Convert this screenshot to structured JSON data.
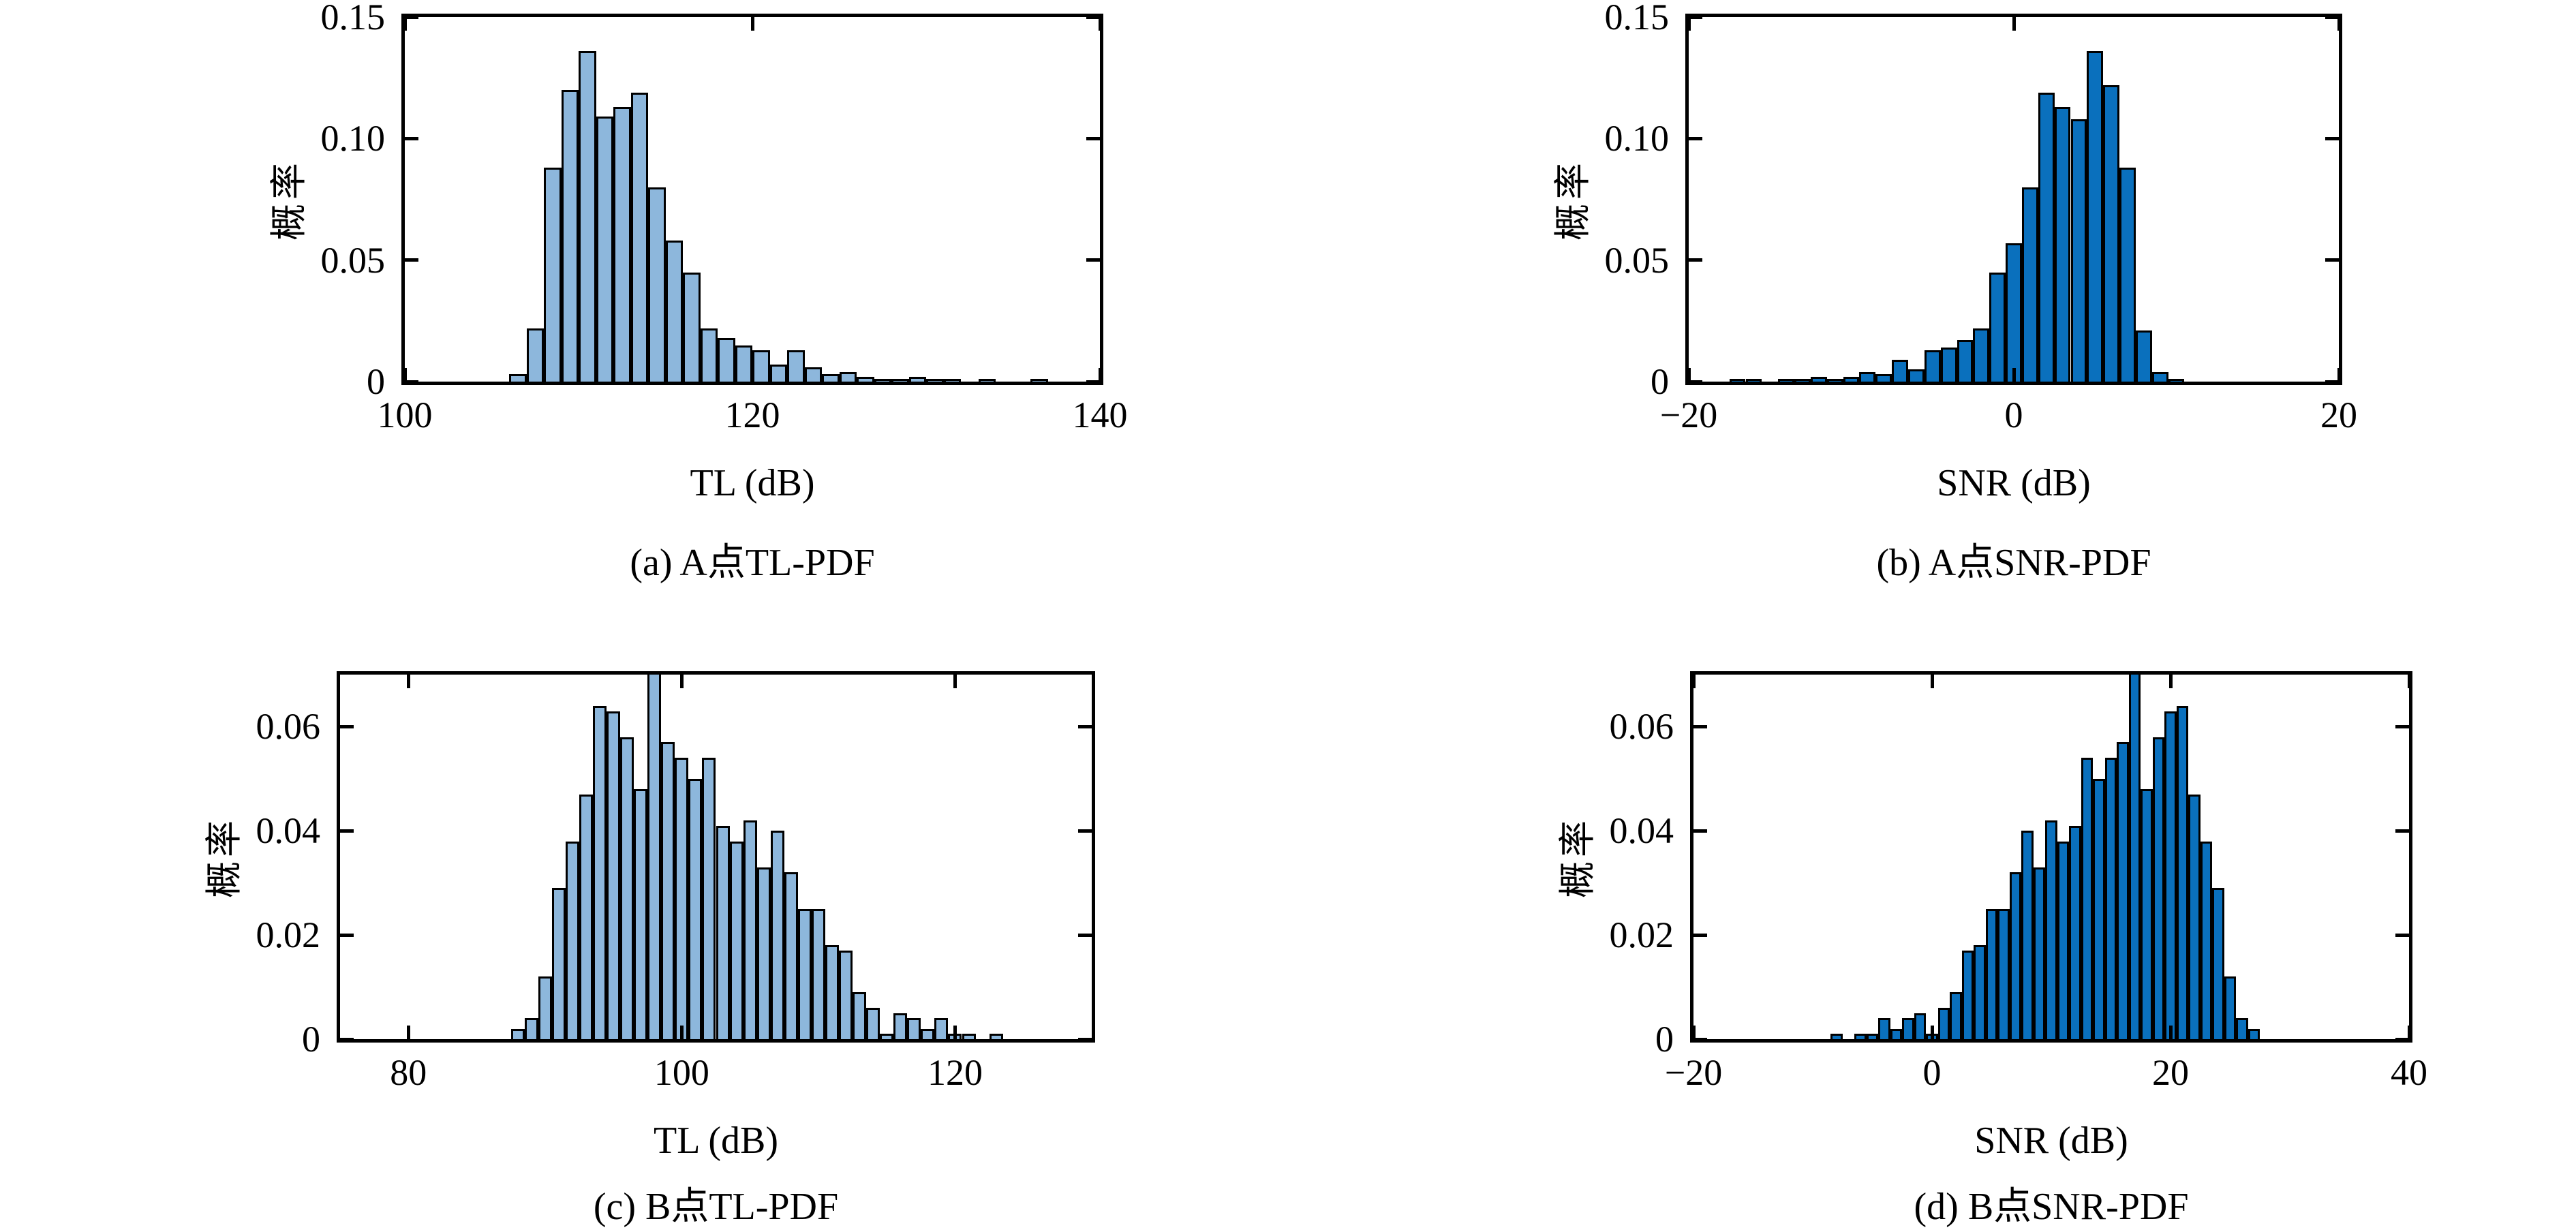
{
  "figure": {
    "background": "#ffffff",
    "edge_color": "#000000",
    "probability_label": "概率"
  },
  "chart_data": [
    {
      "id": "a",
      "type": "bar",
      "caption": "(a) A点TL-PDF",
      "xlabel": "TL (dB)",
      "ylabel": "概率",
      "bar_color": "#8db7dc",
      "edge_color": "#000000",
      "grid": false,
      "legend": null,
      "xlim": [
        100,
        140
      ],
      "ylim": [
        0,
        0.15
      ],
      "xticks": [
        {
          "v": 100,
          "label": "100"
        },
        {
          "v": 120,
          "label": "120"
        },
        {
          "v": 140,
          "label": "140"
        }
      ],
      "yticks": [
        {
          "v": 0,
          "label": "0"
        },
        {
          "v": 0.05,
          "label": "0.05"
        },
        {
          "v": 0.1,
          "label": "0.10"
        },
        {
          "v": 0.15,
          "label": "0.15"
        }
      ],
      "bin_start": 106,
      "bin_width": 1,
      "values": [
        0.003,
        0.022,
        0.088,
        0.12,
        0.136,
        0.109,
        0.113,
        0.119,
        0.08,
        0.058,
        0.045,
        0.022,
        0.018,
        0.015,
        0.013,
        0.007,
        0.013,
        0.006,
        0.003,
        0.004,
        0.002,
        0.001,
        0.001,
        0.002,
        0.001,
        0.001,
        0,
        0.001,
        0,
        0,
        0.001
      ]
    },
    {
      "id": "b",
      "type": "bar",
      "caption": "(b) A点SNR-PDF",
      "xlabel": "SNR (dB)",
      "ylabel": "概率",
      "bar_color": "#0a70bd",
      "edge_color": "#000000",
      "grid": false,
      "legend": null,
      "xlim": [
        -20,
        20
      ],
      "ylim": [
        0,
        0.15
      ],
      "xticks": [
        {
          "v": -20,
          "label": "−20"
        },
        {
          "v": 0,
          "label": "0"
        },
        {
          "v": 20,
          "label": "20"
        }
      ],
      "yticks": [
        {
          "v": 0,
          "label": "0"
        },
        {
          "v": 0.05,
          "label": "0.05"
        },
        {
          "v": 0.1,
          "label": "0.10"
        },
        {
          "v": 0.15,
          "label": "0.15"
        }
      ],
      "bin_start": -17.5,
      "bin_width": 1,
      "values": [
        0.001,
        0.001,
        0,
        0.001,
        0.001,
        0.002,
        0.001,
        0.002,
        0.004,
        0.003,
        0.009,
        0.005,
        0.013,
        0.014,
        0.017,
        0.022,
        0.045,
        0.057,
        0.08,
        0.119,
        0.113,
        0.108,
        0.136,
        0.122,
        0.088,
        0.021,
        0.004,
        0.001
      ]
    },
    {
      "id": "c",
      "type": "bar",
      "caption": "(c) B点TL-PDF",
      "xlabel": "TL (dB)",
      "ylabel": "概率",
      "bar_color": "#8db7dc",
      "edge_color": "#000000",
      "grid": false,
      "legend": null,
      "xlim": [
        75,
        130
      ],
      "ylim": [
        0,
        0.07
      ],
      "xticks": [
        {
          "v": 80,
          "label": "80"
        },
        {
          "v": 100,
          "label": "100"
        },
        {
          "v": 120,
          "label": "120"
        }
      ],
      "yticks": [
        {
          "v": 0,
          "label": "0"
        },
        {
          "v": 0.02,
          "label": "0.02"
        },
        {
          "v": 0.04,
          "label": "0.04"
        },
        {
          "v": 0.06,
          "label": "0.06"
        }
      ],
      "bin_start": 87.5,
      "bin_width": 1,
      "values": [
        0.002,
        0.004,
        0.012,
        0.029,
        0.038,
        0.047,
        0.064,
        0.063,
        0.058,
        0.048,
        0.073,
        0.057,
        0.054,
        0.05,
        0.054,
        0.041,
        0.038,
        0.042,
        0.033,
        0.04,
        0.032,
        0.025,
        0.025,
        0.018,
        0.017,
        0.009,
        0.006,
        0.001,
        0.005,
        0.004,
        0.002,
        0.004,
        0.001,
        0.001,
        0,
        0.001
      ]
    },
    {
      "id": "d",
      "type": "bar",
      "caption": "(d) B点SNR-PDF",
      "xlabel": "SNR (dB)",
      "ylabel": "概率",
      "bar_color": "#0a70bd",
      "edge_color": "#000000",
      "grid": false,
      "legend": null,
      "xlim": [
        -20,
        40
      ],
      "ylim": [
        0,
        0.07
      ],
      "xticks": [
        {
          "v": -20,
          "label": "−20"
        },
        {
          "v": 0,
          "label": "0"
        },
        {
          "v": 20,
          "label": "20"
        },
        {
          "v": 40,
          "label": "40"
        }
      ],
      "yticks": [
        {
          "v": 0,
          "label": "0"
        },
        {
          "v": 0.02,
          "label": "0.02"
        },
        {
          "v": 0.04,
          "label": "0.04"
        },
        {
          "v": 0.06,
          "label": "0.06"
        }
      ],
      "bin_start": -8.5,
      "bin_width": 1,
      "values": [
        0.001,
        0,
        0.001,
        0.001,
        0.004,
        0.002,
        0.004,
        0.005,
        0.001,
        0.006,
        0.009,
        0.017,
        0.018,
        0.025,
        0.025,
        0.032,
        0.04,
        0.033,
        0.042,
        0.038,
        0.041,
        0.054,
        0.05,
        0.054,
        0.057,
        0.073,
        0.048,
        0.058,
        0.063,
        0.064,
        0.047,
        0.038,
        0.029,
        0.012,
        0.004,
        0.002
      ]
    }
  ]
}
